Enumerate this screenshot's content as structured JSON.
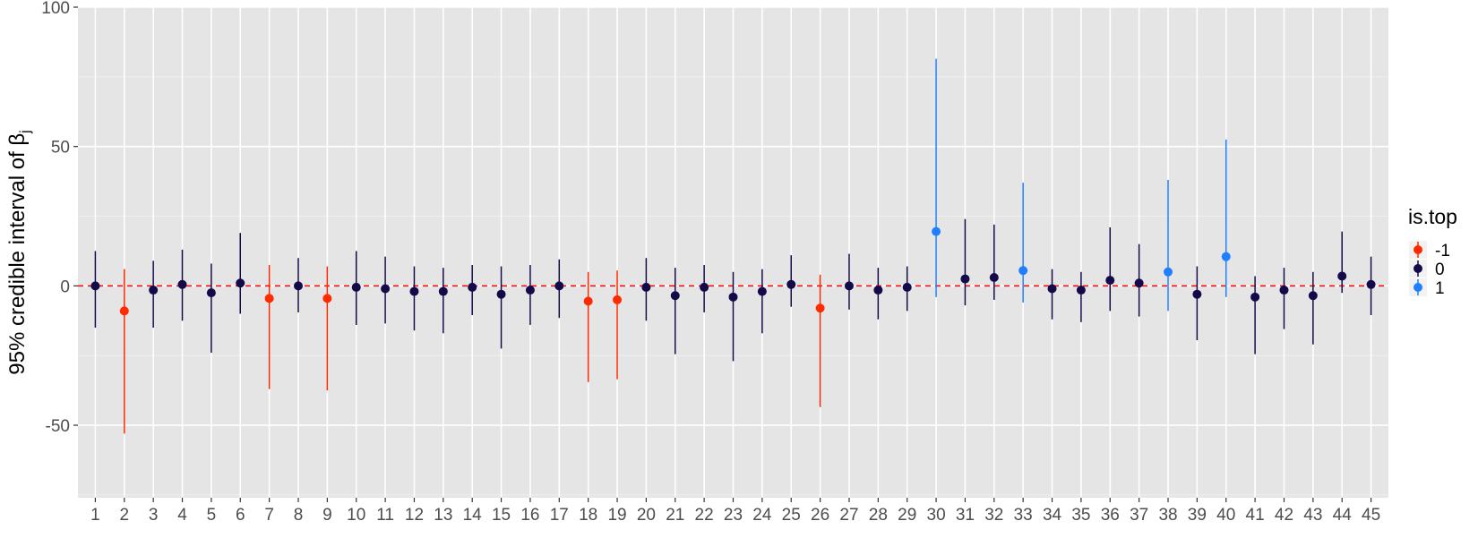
{
  "chart_data": {
    "type": "scatter",
    "title": "",
    "xlabel": "",
    "ylabel": {
      "main": "95% credible interval of β",
      "subscript": "j"
    },
    "ylim": [
      -76,
      100
    ],
    "yticks": [
      100,
      50,
      0,
      -50
    ],
    "xticks": [
      1,
      2,
      3,
      4,
      5,
      6,
      7,
      8,
      9,
      10,
      11,
      12,
      13,
      14,
      15,
      16,
      17,
      18,
      19,
      20,
      21,
      22,
      23,
      24,
      25,
      26,
      27,
      28,
      29,
      30,
      31,
      32,
      33,
      34,
      35,
      36,
      37,
      38,
      39,
      40,
      41,
      42,
      43,
      44,
      45
    ],
    "grid": true,
    "reference_line": {
      "y": 0,
      "color": "#ff0000",
      "style": "dashed"
    },
    "legend": {
      "title": "is.top",
      "placement": "right",
      "entries": [
        {
          "label": "-1",
          "color": "#ff2a00"
        },
        {
          "label": "0",
          "color": "#140a4a"
        },
        {
          "label": "1",
          "color": "#1e7fff"
        }
      ]
    },
    "points": [
      {
        "x": 1,
        "est": 0,
        "low": -15,
        "high": 12.5,
        "top": "0"
      },
      {
        "x": 2,
        "est": -9,
        "low": -53,
        "high": 6,
        "top": "-1"
      },
      {
        "x": 3,
        "est": -1.5,
        "low": -15,
        "high": 9,
        "top": "0"
      },
      {
        "x": 4,
        "est": 0.5,
        "low": -12.5,
        "high": 13,
        "top": "0"
      },
      {
        "x": 5,
        "est": -2.5,
        "low": -24,
        "high": 8,
        "top": "0"
      },
      {
        "x": 6,
        "est": 1,
        "low": -10,
        "high": 19,
        "top": "0"
      },
      {
        "x": 7,
        "est": -4.5,
        "low": -37,
        "high": 7.5,
        "top": "-1"
      },
      {
        "x": 8,
        "est": 0,
        "low": -9.5,
        "high": 10,
        "top": "0"
      },
      {
        "x": 9,
        "est": -4.5,
        "low": -37.5,
        "high": 7,
        "top": "-1"
      },
      {
        "x": 10,
        "est": -0.5,
        "low": -14,
        "high": 12.5,
        "top": "0"
      },
      {
        "x": 11,
        "est": -1,
        "low": -13.5,
        "high": 10.5,
        "top": "0"
      },
      {
        "x": 12,
        "est": -2,
        "low": -16,
        "high": 7,
        "top": "0"
      },
      {
        "x": 13,
        "est": -2,
        "low": -17,
        "high": 6.5,
        "top": "0"
      },
      {
        "x": 14,
        "est": -0.5,
        "low": -10.5,
        "high": 7.5,
        "top": "0"
      },
      {
        "x": 15,
        "est": -3,
        "low": -22.5,
        "high": 7,
        "top": "0"
      },
      {
        "x": 16,
        "est": -1.5,
        "low": -14,
        "high": 7.5,
        "top": "0"
      },
      {
        "x": 17,
        "est": 0,
        "low": -11.5,
        "high": 9.5,
        "top": "0"
      },
      {
        "x": 18,
        "est": -5.5,
        "low": -34.5,
        "high": 5,
        "top": "-1"
      },
      {
        "x": 19,
        "est": -5,
        "low": -33.5,
        "high": 5.5,
        "top": "-1"
      },
      {
        "x": 20,
        "est": -0.5,
        "low": -12.5,
        "high": 10,
        "top": "0"
      },
      {
        "x": 21,
        "est": -3.5,
        "low": -24.5,
        "high": 6.5,
        "top": "0"
      },
      {
        "x": 22,
        "est": -0.5,
        "low": -9.5,
        "high": 7.5,
        "top": "0"
      },
      {
        "x": 23,
        "est": -4,
        "low": -27,
        "high": 5,
        "top": "0"
      },
      {
        "x": 24,
        "est": -2,
        "low": -17,
        "high": 6,
        "top": "0"
      },
      {
        "x": 25,
        "est": 0.5,
        "low": -7.5,
        "high": 11,
        "top": "0"
      },
      {
        "x": 26,
        "est": -8,
        "low": -43.5,
        "high": 4,
        "top": "-1"
      },
      {
        "x": 27,
        "est": 0,
        "low": -8.5,
        "high": 11.5,
        "top": "0"
      },
      {
        "x": 28,
        "est": -1.5,
        "low": -12,
        "high": 6.5,
        "top": "0"
      },
      {
        "x": 29,
        "est": -0.5,
        "low": -9,
        "high": 7,
        "top": "0"
      },
      {
        "x": 30,
        "est": 19.5,
        "low": -4,
        "high": 81.5,
        "top": "1"
      },
      {
        "x": 31,
        "est": 2.5,
        "low": -7,
        "high": 24,
        "top": "0"
      },
      {
        "x": 32,
        "est": 3,
        "low": -5,
        "high": 22,
        "top": "0"
      },
      {
        "x": 33,
        "est": 5.5,
        "low": -6,
        "high": 37,
        "top": "1"
      },
      {
        "x": 34,
        "est": -1,
        "low": -12,
        "high": 6,
        "top": "0"
      },
      {
        "x": 35,
        "est": -1.5,
        "low": -13,
        "high": 5,
        "top": "0"
      },
      {
        "x": 36,
        "est": 2,
        "low": -9,
        "high": 21,
        "top": "0"
      },
      {
        "x": 37,
        "est": 1,
        "low": -11,
        "high": 15,
        "top": "0"
      },
      {
        "x": 38,
        "est": 5,
        "low": -9,
        "high": 38,
        "top": "1"
      },
      {
        "x": 39,
        "est": -3,
        "low": -19.5,
        "high": 7,
        "top": "0"
      },
      {
        "x": 40,
        "est": 10.5,
        "low": -4,
        "high": 52.5,
        "top": "1"
      },
      {
        "x": 41,
        "est": -4,
        "low": -24.5,
        "high": 3.5,
        "top": "0"
      },
      {
        "x": 42,
        "est": -1.5,
        "low": -15.5,
        "high": 6.5,
        "top": "0"
      },
      {
        "x": 43,
        "est": -3.5,
        "low": -21,
        "high": 5,
        "top": "0"
      },
      {
        "x": 44,
        "est": 3.5,
        "low": -2.5,
        "high": 19.5,
        "top": "0"
      },
      {
        "x": 45,
        "est": 0.5,
        "low": -10.5,
        "high": 10.5,
        "top": "0"
      }
    ]
  }
}
